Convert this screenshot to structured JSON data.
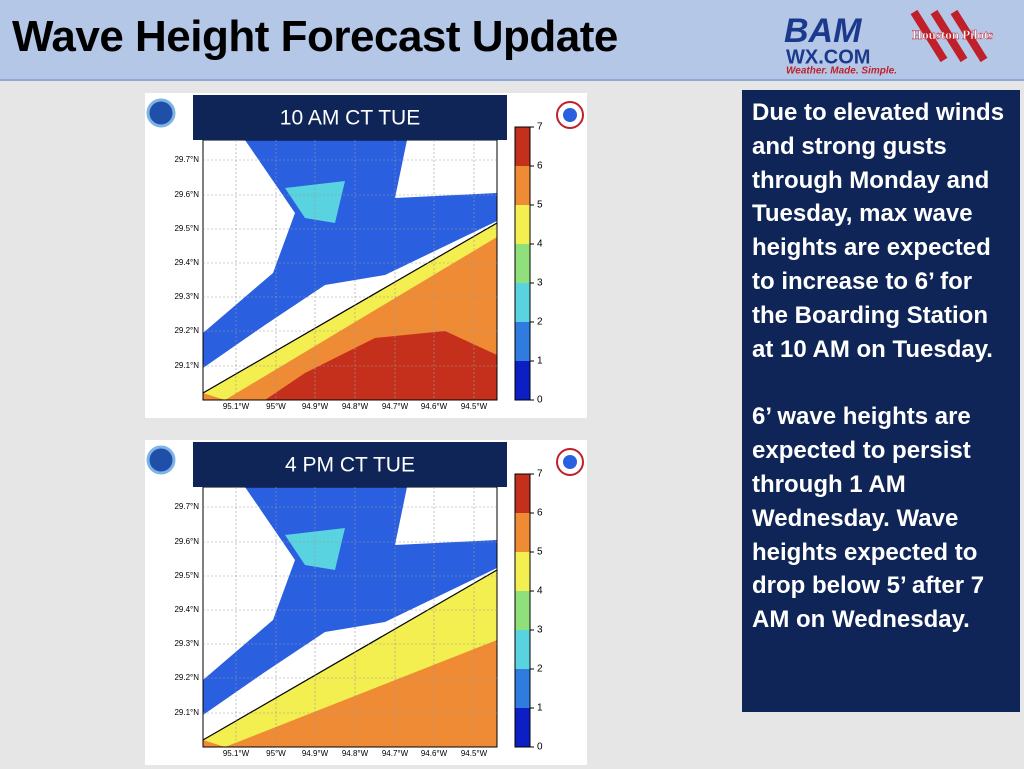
{
  "header": {
    "title": "Wave Height Forecast Update",
    "logo": {
      "brand": "BAM",
      "domain": "WX.COM",
      "tagline": "Weather. Made. Simple.",
      "partner": "Houston Pilots"
    }
  },
  "maps": [
    {
      "label": "10 AM CT TUE",
      "lat_labels": [
        "29.7°N",
        "29.6°N",
        "29.5°N",
        "29.4°N",
        "29.3°N",
        "29.2°N",
        "29.1°N"
      ],
      "lon_labels": [
        "95.1°W",
        "95°W",
        "94.9°W",
        "94.8°W",
        "94.7°W",
        "94.6°W",
        "94.5°W"
      ],
      "colorbar_ticks": [
        0,
        1,
        2,
        3,
        4,
        5,
        6,
        7
      ]
    },
    {
      "label": "4 PM CT TUE",
      "lat_labels": [
        "29.7°N",
        "29.6°N",
        "29.5°N",
        "29.4°N",
        "29.3°N",
        "29.2°N",
        "29.1°N"
      ],
      "lon_labels": [
        "95.1°W",
        "95°W",
        "94.9°W",
        "94.8°W",
        "94.7°W",
        "94.6°W",
        "94.5°W"
      ],
      "colorbar_ticks": [
        0,
        1,
        2,
        3,
        4,
        5,
        6,
        7
      ]
    }
  ],
  "note": {
    "paragraphs": [
      "Due to elevated winds and strong gusts through Monday and Tuesday, max wave heights are expected to increase to 6’ for the Boarding Station at 10 AM on Tuesday.",
      "6’ wave heights are expected to persist through 1 AM Wednesday. Wave heights expected to drop below 5’ after 7 AM on Wednesday."
    ]
  }
}
